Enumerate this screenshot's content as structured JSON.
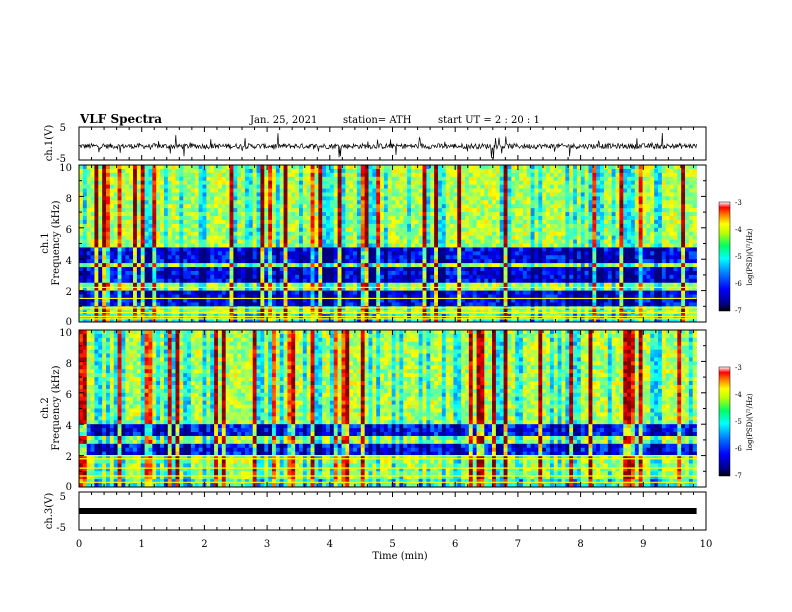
{
  "header": {
    "title": "VLF Spectra",
    "date": "Jan. 25, 2021",
    "station": "station= ATH",
    "start": "start  UT =   2 : 20 : 1"
  },
  "chart_data": [
    {
      "type": "line",
      "panel": "ch1_waveform",
      "ylabel": "ch.1(V)",
      "ylim": [
        -5,
        5
      ],
      "yticks": [
        "5",
        "-5"
      ],
      "x_range_min": [
        0,
        9.85
      ],
      "baseline_v": -0.8,
      "noise_amplitude_v": 0.8,
      "spike_amplitude_v": 3.5
    },
    {
      "type": "heatmap",
      "panel": "ch1_spectrogram",
      "ylabel_top": "ch.1",
      "ylabel": "Frequency (kHz)",
      "ylim": [
        0,
        10
      ],
      "yticks": [
        "0",
        "2",
        "4",
        "6",
        "8",
        "10"
      ],
      "xlim": [
        0,
        10
      ],
      "data_x_end_min": 9.85,
      "colorbar_label": "log(PSD)(V²/Hz)",
      "colorbar_range": [
        -7,
        -3
      ],
      "colorbar_ticks": [
        "-3",
        "-4",
        "-5",
        "-6",
        "-7"
      ],
      "dark_bands_khz": [
        [
          0.9,
          1.4
        ],
        [
          1.6,
          2.1
        ],
        [
          2.5,
          3.5
        ],
        [
          3.8,
          4.8
        ]
      ],
      "hum_lines_khz": [
        0.2,
        0.35,
        0.6,
        0.9,
        1.5,
        2.2
      ]
    },
    {
      "type": "heatmap",
      "panel": "ch2_spectrogram",
      "ylabel_top": "ch.2",
      "ylabel": "Frequency (kHz)",
      "ylim": [
        0,
        10
      ],
      "yticks": [
        "0",
        "2",
        "4",
        "6",
        "8",
        "10"
      ],
      "xlim": [
        0,
        10
      ],
      "data_x_end_min": 9.85,
      "colorbar_label": "log(PSD)(V²/Hz)",
      "colorbar_range": [
        -7,
        -3
      ],
      "colorbar_ticks": [
        "-3",
        "-4",
        "-5",
        "-6",
        "-7"
      ],
      "dark_bands_khz": [
        [
          2.1,
          2.8
        ],
        [
          3.3,
          4.0
        ]
      ],
      "hum_lines_khz": [
        0.3,
        0.7,
        1.2,
        1.8,
        2.0
      ]
    },
    {
      "type": "line",
      "panel": "ch3_waveform",
      "ylabel": "ch.3(V)",
      "ylim": [
        -5,
        5
      ],
      "yticks": [
        "5",
        "-5"
      ],
      "xlabel": "Time (min)",
      "xlim": [
        0,
        10
      ],
      "xticks": [
        "0",
        "1",
        "2",
        "3",
        "4",
        "5",
        "6",
        "7",
        "8",
        "9",
        "10"
      ],
      "x_range_min": [
        0,
        9.85
      ],
      "level_v": 0
    }
  ],
  "colors": {
    "jet": [
      "#00007f",
      "#0000ff",
      "#007fff",
      "#00ffff",
      "#7fff7f",
      "#ffff00",
      "#ff7f00",
      "#ff0000",
      "#7f0000"
    ]
  }
}
